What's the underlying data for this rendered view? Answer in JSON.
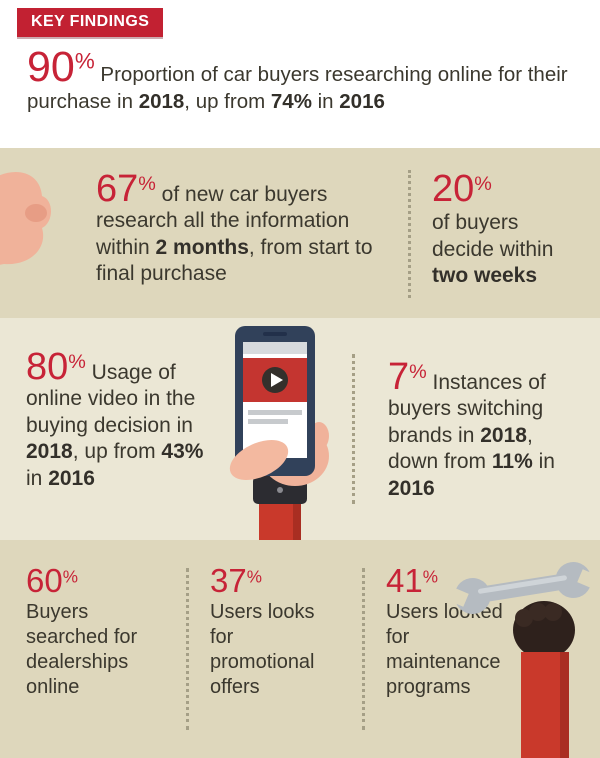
{
  "banner": {
    "title": "KEY FINDINGS"
  },
  "colors": {
    "accent_red": "#c72337",
    "banner_red": "#c22132",
    "band_beige": "#ded7bc",
    "band_cream": "#ebe7d5",
    "text_dark": "#3b382e",
    "illustration_skin": "#f0b29a",
    "illustration_sleeve_red": "#c9392b",
    "phone_navy": "#31415a",
    "wrench_grey": "#b5bbc1"
  },
  "stats": {
    "research_online": {
      "number": "90",
      "pct": "%",
      "segments": [
        {
          "t": " Proportion of car buyers researching online for their purchase in "
        },
        {
          "t": "2018",
          "b": true
        },
        {
          "t": ", up from "
        },
        {
          "t": "74%",
          "b": true
        },
        {
          "t": " in "
        },
        {
          "t": "2016",
          "b": true
        }
      ]
    },
    "research_two_months": {
      "number": "67",
      "pct": "%",
      "segments": [
        {
          "t": " of new car buyers research all the information within "
        },
        {
          "t": "2 months",
          "b": true
        },
        {
          "t": ", from start to final purchase"
        }
      ]
    },
    "decide_two_weeks": {
      "number": "20",
      "pct": "%",
      "segments": [
        {
          "t": "of buyers decide within "
        },
        {
          "t": "two weeks",
          "b": true
        }
      ]
    },
    "online_video": {
      "number": "80",
      "pct": "%",
      "segments": [
        {
          "t": " Usage of online video in the buying decision in "
        },
        {
          "t": "2018",
          "b": true
        },
        {
          "t": ", up from "
        },
        {
          "t": "43%",
          "b": true
        },
        {
          "t": " in "
        },
        {
          "t": "2016",
          "b": true
        }
      ]
    },
    "brand_switching": {
      "number": "7",
      "pct": "%",
      "segments": [
        {
          "t": " Instances of buyers switching brands in "
        },
        {
          "t": "2018",
          "b": true
        },
        {
          "t": ", down from "
        },
        {
          "t": "11%",
          "b": true
        },
        {
          "t": " in "
        },
        {
          "t": "2016",
          "b": true
        }
      ]
    },
    "dealership_search": {
      "number": "60",
      "pct": "%",
      "segments": [
        {
          "t": "Buyers searched for dealerships online"
        }
      ]
    },
    "promotional_offers": {
      "number": "37",
      "pct": "%",
      "segments": [
        {
          "t": "Users looks for promotional offers"
        }
      ]
    },
    "maintenance_programs": {
      "number": "41",
      "pct": "%",
      "segments": [
        {
          "t": "Users looked for maintenance programs"
        }
      ]
    }
  },
  "chart_data": {
    "type": "table",
    "title": "KEY FINDINGS",
    "items": [
      {
        "value": 90,
        "unit": "%",
        "label": "Proportion of car buyers researching online for their purchase in 2018, up from 74% in 2016"
      },
      {
        "value": 67,
        "unit": "%",
        "label": "of new car buyers research all the information within 2 months, from start to final purchase"
      },
      {
        "value": 20,
        "unit": "%",
        "label": "of buyers decide within two weeks"
      },
      {
        "value": 80,
        "unit": "%",
        "label": "Usage of online video in the buying decision in 2018, up from 43% in 2016"
      },
      {
        "value": 7,
        "unit": "%",
        "label": "Instances of buyers switching brands in 2018, down from 11% in 2016"
      },
      {
        "value": 60,
        "unit": "%",
        "label": "Buyers searched for dealerships online"
      },
      {
        "value": 37,
        "unit": "%",
        "label": "Users looks for promotional offers"
      },
      {
        "value": 41,
        "unit": "%",
        "label": "Users looked for maintenance programs"
      }
    ]
  }
}
